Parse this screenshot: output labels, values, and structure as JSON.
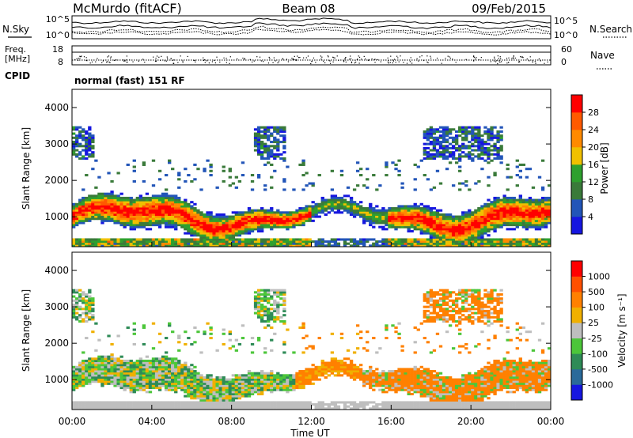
{
  "header": {
    "station": "McMurdo (fitACF)",
    "beam": "Beam 08",
    "date": "09/Feb/2015"
  },
  "noise_panel": {
    "left_label": "N.Sky",
    "right_label": "N.Search",
    "left_ticks": [
      "10^5",
      "10^0"
    ],
    "right_ticks": [
      "10^5",
      "10^0"
    ]
  },
  "freq_panel": {
    "left_label_1": "Freq.",
    "left_label_2": "[MHz]",
    "left_ticks": [
      "18",
      "8"
    ],
    "right_label": "Nave",
    "right_ticks": [
      "60",
      "0"
    ]
  },
  "cpid": {
    "label": "CPID",
    "mode": "normal (fast) 151 RF"
  },
  "chart_data": [
    {
      "type": "heatmap",
      "title": "",
      "xlabel": "",
      "ylabel": "Slant Range [km]",
      "xlim": [
        "00:00",
        "24:00"
      ],
      "ylim": [
        180,
        4500
      ],
      "y_ticks": [
        "1000",
        "2000",
        "3000",
        "4000"
      ],
      "colorbar": {
        "label": "Power [dB]",
        "ticks": [
          "4",
          "8",
          "12",
          "16",
          "20",
          "24",
          "28"
        ],
        "colors": [
          "#1616e0",
          "#2255b8",
          "#3a7a3a",
          "#2ea02e",
          "#f0c000",
          "#ff8a00",
          "#ff5a00",
          "#ff0000"
        ]
      }
    },
    {
      "type": "heatmap",
      "title": "",
      "xlabel": "Time UT",
      "ylabel": "Slant Range [km]",
      "xlim": [
        "00:00",
        "24:00"
      ],
      "ylim": [
        180,
        4500
      ],
      "x_ticks": [
        "00:00",
        "04:00",
        "08:00",
        "12:00",
        "16:00",
        "20:00",
        "00:00"
      ],
      "y_ticks": [
        "1000",
        "2000",
        "3000",
        "4000"
      ],
      "colorbar": {
        "label": "Velocity [m s⁻¹]",
        "ticks": [
          "1000",
          "500",
          "100",
          "25",
          "-25",
          "-100",
          "-500",
          "-1000"
        ],
        "colors": [
          "#1616e0",
          "#2a6a9a",
          "#2e8b57",
          "#4cc63a",
          "#bebebe",
          "#f0b000",
          "#ff8000",
          "#ff5000",
          "#ff0000"
        ]
      }
    }
  ]
}
